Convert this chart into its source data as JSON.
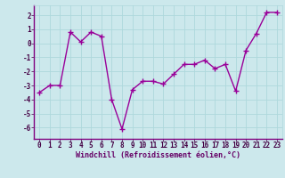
{
  "x": [
    0,
    1,
    2,
    3,
    4,
    5,
    6,
    7,
    8,
    9,
    10,
    11,
    12,
    13,
    14,
    15,
    16,
    17,
    18,
    19,
    20,
    21,
    22,
    23
  ],
  "y": [
    -3.5,
    -3.0,
    -3.0,
    0.8,
    0.1,
    0.8,
    0.5,
    -4.0,
    -6.1,
    -3.3,
    -2.7,
    -2.7,
    -2.9,
    -2.2,
    -1.5,
    -1.5,
    -1.2,
    -1.8,
    -1.5,
    -3.4,
    -0.5,
    0.7,
    2.2,
    2.2
  ],
  "line_color": "#990099",
  "marker": "+",
  "marker_size": 4,
  "linewidth": 1.0,
  "xlabel": "Windchill (Refroidissement éolien,°C)",
  "xlabel_fontsize": 6,
  "xtick_labels": [
    "0",
    "1",
    "2",
    "3",
    "4",
    "5",
    "6",
    "7",
    "8",
    "9",
    "10",
    "11",
    "12",
    "13",
    "14",
    "15",
    "16",
    "17",
    "18",
    "19",
    "20",
    "21",
    "22",
    "23"
  ],
  "ytick_vals": [
    -6,
    -5,
    -4,
    -3,
    -2,
    -1,
    0,
    1,
    2
  ],
  "ytick_labels": [
    "-6",
    "-5",
    "-4",
    "-3",
    "-2",
    "-1",
    "0",
    "1",
    "2"
  ],
  "ylim": [
    -6.8,
    2.7
  ],
  "xlim": [
    -0.5,
    23.5
  ],
  "grid_color": "#aed8dc",
  "bg_color": "#cce8ec",
  "tick_fontsize": 5.5,
  "spine_color": "#800080"
}
